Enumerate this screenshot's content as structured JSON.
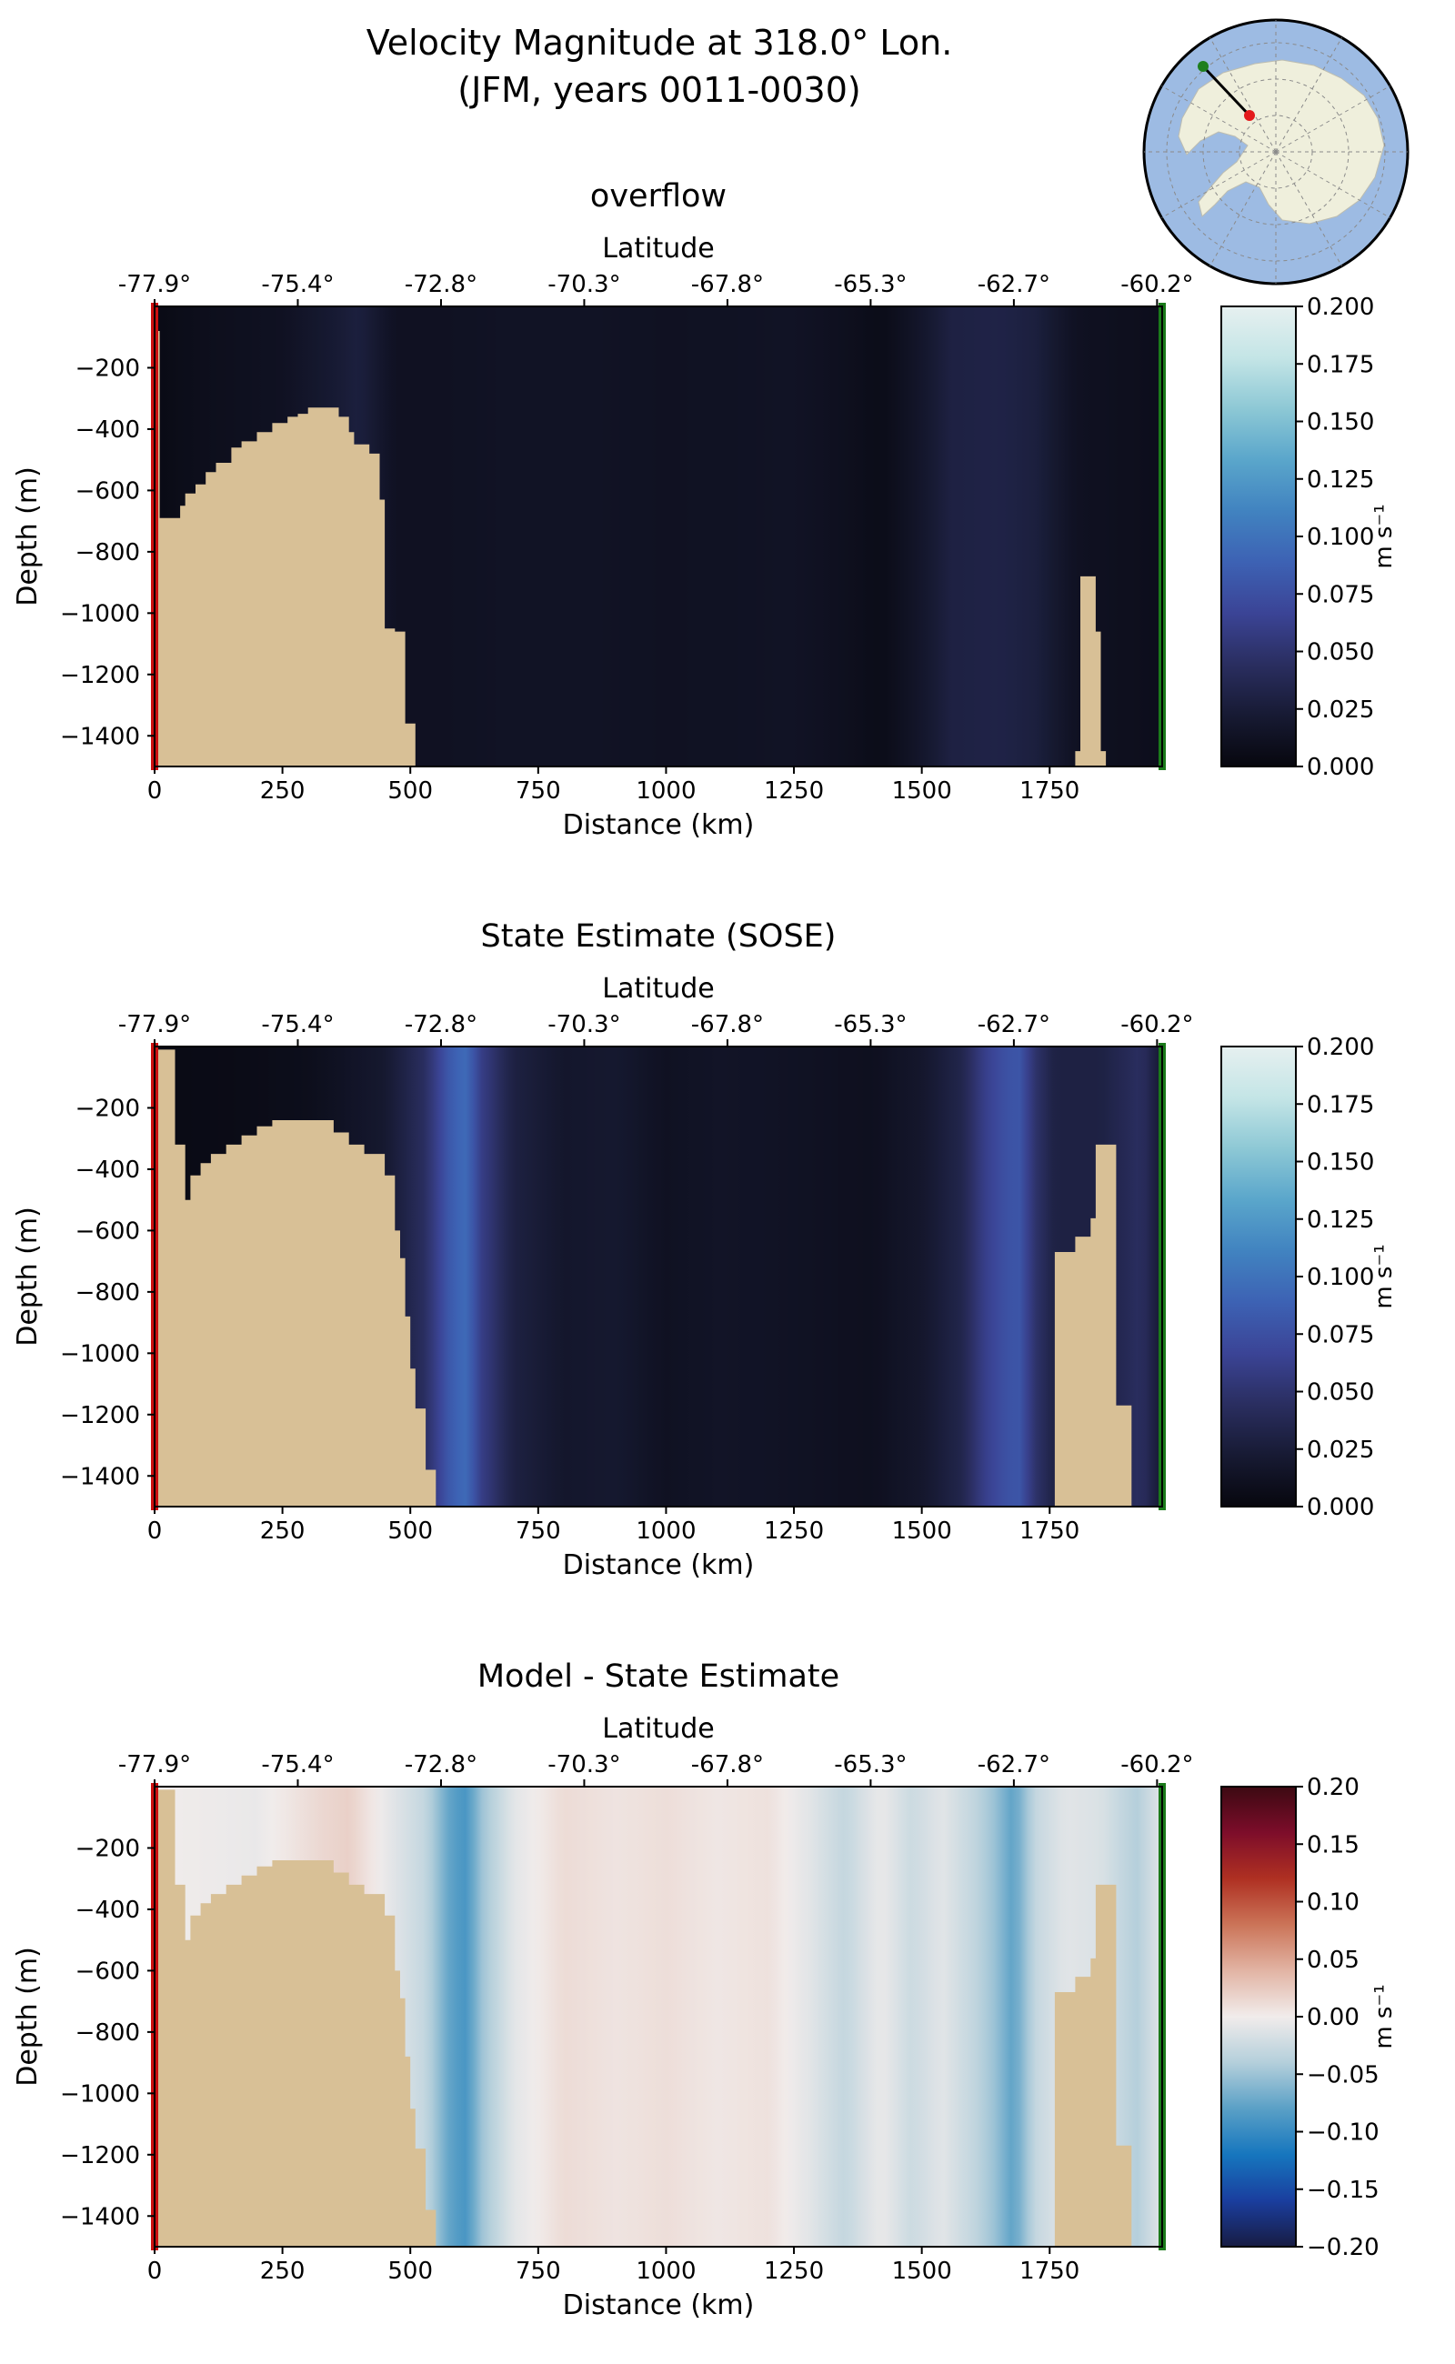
{
  "figure": {
    "title_line1": "Velocity Magnitude at 318.0° Lon.",
    "title_line2": "(JFM, years 0011-0030)"
  },
  "inset_map": {
    "description_icon": "antarctica-locator-map",
    "ocean_color": "#9DBBE3",
    "land_color": "#EFEFDC",
    "start_marker_color": "#1E7F1E",
    "end_marker_color": "#E31A1C"
  },
  "colors": {
    "land": "#D8C096",
    "start_line": "#CC1010",
    "end_line": "#1A7A1A"
  },
  "chart_data": [
    {
      "type": "heatmap",
      "title": "overflow",
      "xlabel": "Distance (km)",
      "ylabel": "Depth (m)",
      "top_xlabel": "Latitude",
      "xlim": [
        0,
        1970
      ],
      "ylim": [
        -1500,
        0
      ],
      "xticks": [
        "0",
        "250",
        "500",
        "750",
        "1000",
        "1250",
        "1500",
        "1750"
      ],
      "xtick_values": [
        0,
        250,
        500,
        750,
        1000,
        1250,
        1500,
        1750
      ],
      "yticks": [
        "−200",
        "−400",
        "−600",
        "−800",
        "−1000",
        "−1200",
        "−1400"
      ],
      "ytick_values": [
        -200,
        -400,
        -600,
        -800,
        -1000,
        -1200,
        -1400
      ],
      "latitude_ticks": [
        "-77.9°",
        "-75.4°",
        "-72.8°",
        "-70.3°",
        "-67.8°",
        "-65.3°",
        "-62.7°",
        "-60.2°"
      ],
      "latitude_tick_distances": [
        0,
        280,
        560,
        840,
        1120,
        1400,
        1680,
        1960
      ],
      "colorbar": {
        "colormap": "dense",
        "label": "m s⁻¹",
        "vmin": 0.0,
        "vmax": 0.2,
        "ticks": [
          "0.000",
          "0.025",
          "0.050",
          "0.075",
          "0.100",
          "0.125",
          "0.150",
          "0.175",
          "0.200"
        ],
        "tick_values": [
          0.0,
          0.025,
          0.05,
          0.075,
          0.1,
          0.125,
          0.15,
          0.175,
          0.2
        ]
      },
      "velocity_profile_by_distance": {
        "distance_km": [
          0,
          80,
          250,
          350,
          400,
          470,
          560,
          700,
          850,
          1000,
          1150,
          1250,
          1350,
          1420,
          1480,
          1560,
          1650,
          1720,
          1800,
          1880,
          1970
        ],
        "speed_m_s": [
          0.004,
          0.008,
          0.012,
          0.022,
          0.028,
          0.012,
          0.012,
          0.014,
          0.014,
          0.012,
          0.013,
          0.014,
          0.01,
          0.006,
          0.014,
          0.03,
          0.032,
          0.028,
          0.012,
          0.01,
          0.008
        ]
      },
      "bathymetry": {
        "distance_km": [
          0,
          10,
          30,
          50,
          60,
          80,
          100,
          120,
          150,
          170,
          200,
          230,
          260,
          280,
          300,
          340,
          360,
          380,
          390,
          400,
          420,
          440,
          450,
          460,
          470,
          490,
          510,
          1800,
          1810,
          1820,
          1840,
          1850,
          1860
        ],
        "bottom_depth_m": [
          -80,
          -690,
          -690,
          -650,
          -610,
          -580,
          -540,
          -510,
          -460,
          -440,
          -410,
          -380,
          -360,
          -350,
          -330,
          -330,
          -360,
          -410,
          -450,
          -450,
          -480,
          -630,
          -1050,
          -1050,
          -1060,
          -1360,
          -1420,
          -1450,
          -880,
          -880,
          -1060,
          -1450,
          -1500
        ]
      }
    },
    {
      "type": "heatmap",
      "title": "State Estimate (SOSE)",
      "xlabel": "Distance (km)",
      "ylabel": "Depth (m)",
      "top_xlabel": "Latitude",
      "xlim": [
        0,
        1970
      ],
      "ylim": [
        -1500,
        0
      ],
      "xticks": [
        "0",
        "250",
        "500",
        "750",
        "1000",
        "1250",
        "1500",
        "1750"
      ],
      "xtick_values": [
        0,
        250,
        500,
        750,
        1000,
        1250,
        1500,
        1750
      ],
      "yticks": [
        "−200",
        "−400",
        "−600",
        "−800",
        "−1000",
        "−1200",
        "−1400"
      ],
      "ytick_values": [
        -200,
        -400,
        -600,
        -800,
        -1000,
        -1200,
        -1400
      ],
      "latitude_ticks": [
        "-77.9°",
        "-75.4°",
        "-72.8°",
        "-70.3°",
        "-67.8°",
        "-65.3°",
        "-62.7°",
        "-60.2°"
      ],
      "latitude_tick_distances": [
        0,
        280,
        560,
        840,
        1120,
        1400,
        1680,
        1960
      ],
      "colorbar": {
        "colormap": "dense",
        "label": "m s⁻¹",
        "vmin": 0.0,
        "vmax": 0.2,
        "ticks": [
          "0.000",
          "0.025",
          "0.050",
          "0.075",
          "0.100",
          "0.125",
          "0.150",
          "0.175",
          "0.200"
        ],
        "tick_values": [
          0.0,
          0.025,
          0.05,
          0.075,
          0.1,
          0.125,
          0.15,
          0.175,
          0.2
        ]
      },
      "velocity_profile_by_distance": {
        "distance_km": [
          0,
          150,
          300,
          450,
          530,
          580,
          610,
          640,
          700,
          800,
          900,
          1000,
          1100,
          1200,
          1300,
          1400,
          1500,
          1580,
          1620,
          1660,
          1690,
          1720,
          1760,
          1850,
          1930,
          1970
        ],
        "speed_m_s": [
          0.004,
          0.005,
          0.008,
          0.02,
          0.045,
          0.085,
          0.095,
          0.06,
          0.03,
          0.018,
          0.02,
          0.012,
          0.015,
          0.014,
          0.012,
          0.01,
          0.018,
          0.035,
          0.06,
          0.075,
          0.08,
          0.05,
          0.03,
          0.03,
          0.045,
          0.02
        ]
      },
      "bathymetry": {
        "distance_km": [
          0,
          20,
          40,
          60,
          70,
          90,
          110,
          140,
          170,
          200,
          230,
          270,
          310,
          350,
          380,
          410,
          450,
          470,
          480,
          490,
          500,
          510,
          530,
          550,
          560,
          1750,
          1760,
          1800,
          1830,
          1840,
          1870,
          1880,
          1900,
          1910
        ],
        "bottom_depth_m": [
          -10,
          -10,
          -320,
          -500,
          -420,
          -380,
          -350,
          -320,
          -290,
          -260,
          -240,
          -240,
          -240,
          -280,
          -320,
          -350,
          -420,
          -600,
          -690,
          -880,
          -1050,
          -1180,
          -1380,
          -1500,
          -1500,
          -1500,
          -670,
          -620,
          -560,
          -320,
          -320,
          -1170,
          -1170,
          -1500
        ]
      }
    },
    {
      "type": "heatmap",
      "title": "Model - State Estimate",
      "xlabel": "Distance (km)",
      "ylabel": "Depth (m)",
      "top_xlabel": "Latitude",
      "xlim": [
        0,
        1970
      ],
      "ylim": [
        -1500,
        0
      ],
      "xticks": [
        "0",
        "250",
        "500",
        "750",
        "1000",
        "1250",
        "1500",
        "1750"
      ],
      "xtick_values": [
        0,
        250,
        500,
        750,
        1000,
        1250,
        1500,
        1750
      ],
      "yticks": [
        "−200",
        "−400",
        "−600",
        "−800",
        "−1000",
        "−1200",
        "−1400"
      ],
      "ytick_values": [
        -200,
        -400,
        -600,
        -800,
        -1000,
        -1200,
        -1400
      ],
      "latitude_ticks": [
        "-77.9°",
        "-75.4°",
        "-72.8°",
        "-70.3°",
        "-67.8°",
        "-65.3°",
        "-62.7°",
        "-60.2°"
      ],
      "latitude_tick_distances": [
        0,
        280,
        560,
        840,
        1120,
        1400,
        1680,
        1960
      ],
      "colorbar": {
        "colormap": "balance",
        "label": "m s⁻¹",
        "vmin": -0.2,
        "vmax": 0.2,
        "ticks": [
          "−0.20",
          "−0.15",
          "−0.10",
          "−0.05",
          "0.00",
          "0.05",
          "0.10",
          "0.15",
          "0.20"
        ],
        "tick_values": [
          -0.2,
          -0.15,
          -0.1,
          -0.05,
          0.0,
          0.05,
          0.1,
          0.15,
          0.2
        ]
      },
      "difference_profile_by_distance": {
        "distance_km": [
          0,
          200,
          330,
          380,
          450,
          530,
          580,
          610,
          640,
          700,
          800,
          900,
          1000,
          1100,
          1200,
          1280,
          1350,
          1420,
          1480,
          1540,
          1600,
          1640,
          1680,
          1720,
          1780,
          1850,
          1920,
          1970
        ],
        "difference_m_s": [
          0.0,
          -0.005,
          0.015,
          0.02,
          -0.005,
          -0.03,
          -0.08,
          -0.09,
          -0.05,
          -0.01,
          0.012,
          0.006,
          0.01,
          0.004,
          0.008,
          -0.01,
          -0.03,
          -0.004,
          -0.025,
          -0.01,
          -0.03,
          -0.05,
          -0.08,
          -0.03,
          -0.01,
          -0.015,
          -0.04,
          -0.01
        ]
      },
      "bathymetry": {
        "distance_km": [
          0,
          20,
          40,
          60,
          70,
          90,
          110,
          140,
          170,
          200,
          230,
          270,
          310,
          350,
          380,
          410,
          450,
          470,
          480,
          490,
          500,
          510,
          530,
          550,
          560,
          1750,
          1760,
          1800,
          1830,
          1840,
          1870,
          1880,
          1900,
          1910
        ],
        "bottom_depth_m": [
          -10,
          -10,
          -320,
          -500,
          -420,
          -380,
          -350,
          -320,
          -290,
          -260,
          -240,
          -240,
          -240,
          -280,
          -320,
          -350,
          -420,
          -600,
          -690,
          -880,
          -1050,
          -1180,
          -1380,
          -1500,
          -1500,
          -1500,
          -670,
          -620,
          -560,
          -320,
          -320,
          -1170,
          -1170,
          -1500
        ]
      }
    }
  ]
}
